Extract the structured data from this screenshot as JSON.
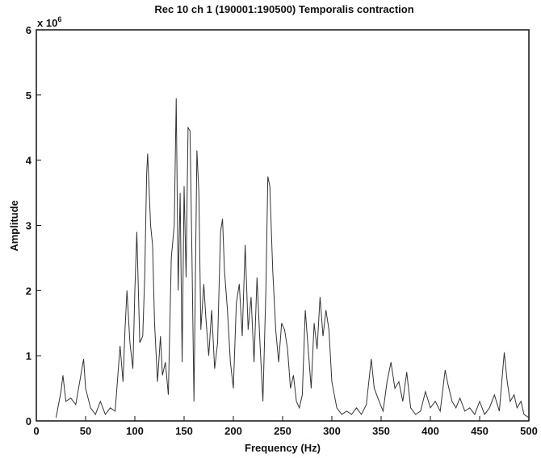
{
  "chart_data": {
    "type": "line",
    "title": "Rec 10 ch 1 (190001:190500) Temporalis contraction",
    "x_label": "Frequency (Hz)",
    "y_label": "Amplitude",
    "y_multiplier": {
      "base": "x 10",
      "exponent": "6"
    },
    "xlim": [
      0,
      500
    ],
    "ylim": [
      0,
      6
    ],
    "xticks": [
      0,
      50,
      100,
      150,
      200,
      250,
      300,
      350,
      400,
      450,
      500
    ],
    "yticks": [
      0,
      1,
      2,
      3,
      4,
      5,
      6
    ],
    "grid": false,
    "series": [
      {
        "color": "#333333",
        "x": [
          20,
          25,
          27,
          30,
          35,
          40,
          48,
          50,
          55,
          60,
          65,
          70,
          75,
          80,
          85,
          88,
          90,
          92,
          95,
          98,
          100,
          102,
          105,
          108,
          110,
          112,
          113,
          116,
          118,
          120,
          123,
          126,
          128,
          131,
          134,
          137,
          140,
          142,
          144,
          146,
          148,
          150,
          152,
          154,
          156,
          158,
          160,
          163,
          165,
          167,
          170,
          172,
          175,
          178,
          181,
          184,
          187,
          189,
          191,
          194,
          197,
          200,
          203,
          206,
          209,
          212,
          215,
          218,
          221,
          224,
          227,
          230,
          233,
          235,
          237,
          240,
          243,
          246,
          249,
          252,
          255,
          258,
          261,
          264,
          267,
          270,
          273,
          276,
          279,
          282,
          285,
          288,
          291,
          294,
          297,
          300,
          305,
          310,
          315,
          320,
          325,
          330,
          335,
          340,
          343,
          348,
          352,
          356,
          360,
          364,
          368,
          372,
          376,
          380,
          385,
          390,
          395,
          400,
          405,
          410,
          415,
          418,
          422,
          426,
          430,
          435,
          440,
          445,
          450,
          455,
          460,
          465,
          470,
          475,
          478,
          481,
          485,
          488,
          492,
          495,
          500
        ],
        "values": [
          0.05,
          0.45,
          0.7,
          0.3,
          0.35,
          0.25,
          0.95,
          0.5,
          0.2,
          0.1,
          0.3,
          0.1,
          0.2,
          0.15,
          1.15,
          0.6,
          1.4,
          2.0,
          1.2,
          0.8,
          2.0,
          2.9,
          1.2,
          1.3,
          2.2,
          3.8,
          4.1,
          3.0,
          2.7,
          1.5,
          0.6,
          1.3,
          0.7,
          0.9,
          0.4,
          2.5,
          3.0,
          4.95,
          2.0,
          3.5,
          0.9,
          3.6,
          2.2,
          4.5,
          4.45,
          2.5,
          0.3,
          4.15,
          3.5,
          1.4,
          2.1,
          1.6,
          1.0,
          1.7,
          0.8,
          1.2,
          2.9,
          3.1,
          2.3,
          1.7,
          0.9,
          0.5,
          1.8,
          2.1,
          1.3,
          2.7,
          1.4,
          1.9,
          0.9,
          2.2,
          1.2,
          0.3,
          2.0,
          3.75,
          3.6,
          2.3,
          1.4,
          0.9,
          1.5,
          1.4,
          1.1,
          0.5,
          0.7,
          0.3,
          0.2,
          0.4,
          1.7,
          1.1,
          0.5,
          1.5,
          1.1,
          1.9,
          1.3,
          1.7,
          1.4,
          0.6,
          0.2,
          0.1,
          0.15,
          0.1,
          0.2,
          0.1,
          0.25,
          0.95,
          0.5,
          0.3,
          0.15,
          0.6,
          0.9,
          0.5,
          0.6,
          0.3,
          0.75,
          0.2,
          0.1,
          0.15,
          0.45,
          0.2,
          0.3,
          0.15,
          0.78,
          0.55,
          0.3,
          0.2,
          0.35,
          0.15,
          0.2,
          0.1,
          0.3,
          0.1,
          0.2,
          0.4,
          0.15,
          1.05,
          0.6,
          0.3,
          0.4,
          0.2,
          0.3,
          0.1,
          0.05
        ]
      }
    ]
  }
}
